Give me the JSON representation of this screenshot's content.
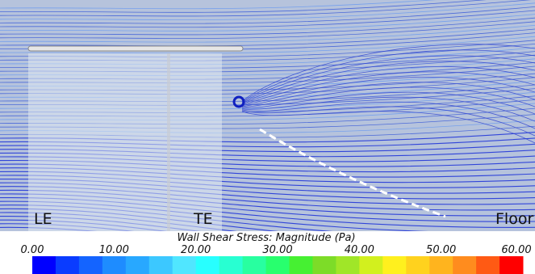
{
  "labels": {
    "le": "LE",
    "te": "TE",
    "floor": "Floor"
  },
  "colorbar": {
    "title": "Wall Shear Stress: Magnitude (Pa)",
    "range": [
      0,
      60
    ],
    "ticks": [
      {
        "value": 0,
        "label": "0.00"
      },
      {
        "value": 10,
        "label": "10.00"
      },
      {
        "value": 20,
        "label": "20.00"
      },
      {
        "value": 30,
        "label": "30.00"
      },
      {
        "value": 40,
        "label": "40.00"
      },
      {
        "value": 50,
        "label": "50.00"
      },
      {
        "value": 60,
        "label": "60.00"
      }
    ],
    "colors": [
      "#0000ff",
      "#0a3cff",
      "#1464ff",
      "#1e8cff",
      "#28a8ff",
      "#3cc8ff",
      "#50e6ff",
      "#28ffff",
      "#28ffd2",
      "#28ffa0",
      "#28ff6e",
      "#46f032",
      "#7ddc28",
      "#a0e628",
      "#d2f01e",
      "#fff01e",
      "#ffd21e",
      "#ffb41e",
      "#ff8c1e",
      "#ff5a14",
      "#ff0000"
    ]
  }
}
